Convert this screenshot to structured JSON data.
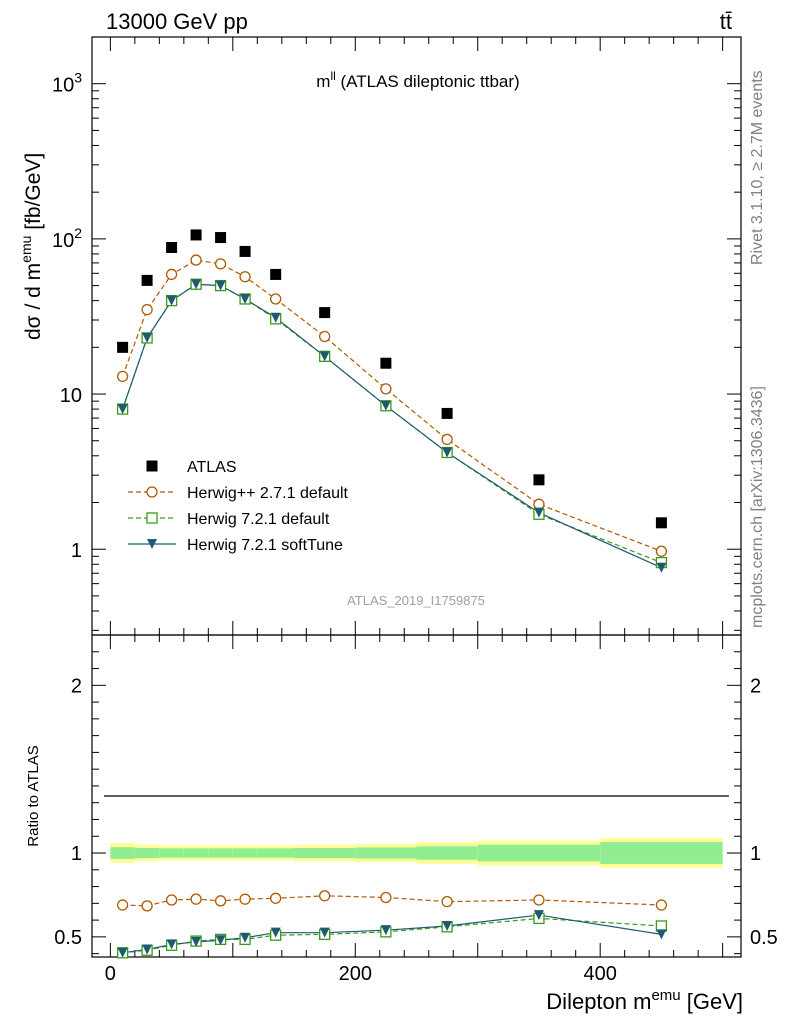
{
  "header": {
    "energy_label": "13000 GeV pp",
    "process_label": "tt̄"
  },
  "side_labels": {
    "rivet": "Rivet 3.1.10, ≥ 2.7M events",
    "source": "mcplots.cern.ch [arXiv:1306.3436]"
  },
  "colors": {
    "atlas": "#000000",
    "herwigpp": "#b05a00",
    "herwig721": "#3a9a1a",
    "softtune": "#1e5a70",
    "band_inner": "#90ee90",
    "band_outer": "#ffff99"
  },
  "chart_data": [
    {
      "type": "scatter",
      "panel": "main",
      "title": "m^ll (ATLAS dileptonic ttbar)",
      "title_parts": {
        "main": "m",
        "sup": "ll",
        "rest": " (ATLAS dileptonic ttbar)"
      },
      "watermark": "ATLAS_2019_I1759875",
      "ylabel": "dσ / d m^emu [fb/GeV]",
      "ylabel_parts": {
        "main": "dσ / d m",
        "sup": "emu",
        "rest": " [fb/GeV]"
      },
      "yscale": "log",
      "ylim": [
        0.28,
        2000
      ],
      "xlim": [
        -15,
        515
      ],
      "ytick_labels": [
        {
          "value": 1000,
          "base": "10",
          "exp": "3"
        },
        {
          "value": 100,
          "base": "10",
          "exp": "2"
        },
        {
          "value": 10,
          "base": "10",
          "exp": ""
        },
        {
          "value": 1,
          "base": "1",
          "exp": ""
        }
      ],
      "legend_position": "lower-left",
      "series": [
        {
          "name": "ATLAS",
          "style": "square",
          "x": [
            10,
            30,
            50,
            70,
            90,
            110,
            135,
            175,
            225,
            275,
            350,
            450
          ],
          "y": [
            20,
            54,
            88,
            106,
            102,
            83,
            59,
            33.5,
            15.8,
            7.5,
            2.8,
            1.48
          ]
        },
        {
          "name": "Herwig++ 2.7.1 default",
          "style": "circle",
          "x": [
            10,
            30,
            50,
            70,
            90,
            110,
            135,
            175,
            225,
            275,
            350,
            450
          ],
          "y": [
            13,
            35,
            59,
            73,
            69,
            57,
            41,
            23.5,
            10.8,
            5.1,
            1.95,
            0.97
          ]
        },
        {
          "name": "Herwig 7.2.1 default",
          "style": "open-square",
          "x": [
            10,
            30,
            50,
            70,
            90,
            110,
            135,
            175,
            225,
            275,
            350,
            450
          ],
          "y": [
            8.0,
            23,
            40,
            51,
            50,
            41,
            30.5,
            17.5,
            8.4,
            4.2,
            1.68,
            0.82
          ]
        },
        {
          "name": "Herwig 7.2.1 softTune",
          "style": "triangle-down",
          "x": [
            10,
            30,
            50,
            70,
            90,
            110,
            135,
            175,
            225,
            275,
            350,
            450
          ],
          "y": [
            8.0,
            23,
            40,
            51,
            50,
            41,
            31,
            17.5,
            8.4,
            4.2,
            1.72,
            0.76
          ]
        }
      ]
    },
    {
      "type": "line",
      "panel": "ratio",
      "xlabel": "Dilepton m^emu [GeV]",
      "xlabel_parts": {
        "main": "Dilepton m",
        "sup": "emu",
        "rest": " [GeV]"
      },
      "ylabel": "Ratio to ATLAS",
      "ylim": [
        0.38,
        2.3
      ],
      "xlim": [
        -15,
        515
      ],
      "yticks": [
        0.5,
        1,
        2
      ],
      "ytick_labels": [
        "0.5",
        "1",
        "2"
      ],
      "xticks": [
        0,
        200,
        400
      ],
      "xtick_labels": [
        "0",
        "200",
        "400"
      ],
      "band": {
        "edges": [
          0,
          20,
          40,
          60,
          80,
          100,
          120,
          150,
          200,
          250,
          300,
          400,
          500
        ],
        "inner_half": [
          0.035,
          0.03,
          0.028,
          0.028,
          0.028,
          0.028,
          0.028,
          0.03,
          0.033,
          0.04,
          0.05,
          0.065
        ],
        "outer_half": [
          0.06,
          0.05,
          0.045,
          0.045,
          0.045,
          0.045,
          0.045,
          0.05,
          0.055,
          0.065,
          0.075,
          0.09
        ]
      },
      "series": [
        {
          "name": "Herwig++ 2.7.1 default",
          "x": [
            10,
            30,
            50,
            70,
            90,
            110,
            135,
            175,
            225,
            275,
            350,
            450
          ],
          "y": [
            0.69,
            0.685,
            0.72,
            0.725,
            0.715,
            0.725,
            0.73,
            0.745,
            0.735,
            0.71,
            0.72,
            0.69
          ]
        },
        {
          "name": "Herwig 7.2.1 default",
          "x": [
            10,
            30,
            50,
            70,
            90,
            110,
            135,
            175,
            225,
            275,
            350,
            450
          ],
          "y": [
            0.405,
            0.42,
            0.45,
            0.475,
            0.485,
            0.485,
            0.51,
            0.515,
            0.53,
            0.56,
            0.61,
            0.565
          ]
        },
        {
          "name": "Herwig 7.2.1 softTune",
          "x": [
            10,
            30,
            50,
            70,
            90,
            110,
            135,
            175,
            225,
            275,
            350,
            450
          ],
          "y": [
            0.405,
            0.425,
            0.455,
            0.47,
            0.48,
            0.495,
            0.525,
            0.525,
            0.54,
            0.565,
            0.63,
            0.515
          ]
        }
      ]
    }
  ]
}
